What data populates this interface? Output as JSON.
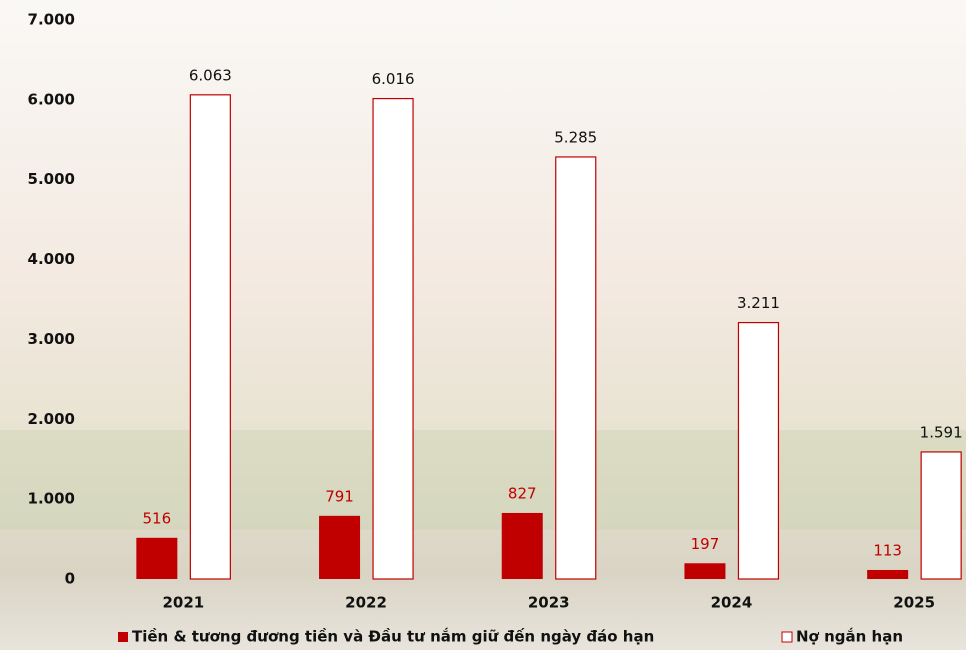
{
  "chart_data": {
    "type": "bar",
    "categories": [
      "2021",
      "2022",
      "2023",
      "2024",
      "2025"
    ],
    "series": [
      {
        "name": "Tiền & tương đương tiền và Đầu tư nắm giữ đến ngày đáo hạn",
        "color": "#c00000",
        "values": [
          516,
          791,
          827,
          197,
          113
        ]
      },
      {
        "name": "Nợ ngắn hạn",
        "color": "#ffffff",
        "values": [
          6063,
          6016,
          5285,
          3211,
          1591
        ],
        "value_labels": [
          "6.063",
          "6.016",
          "5.285",
          "3.211",
          "1.591"
        ]
      }
    ],
    "ylim": [
      0,
      7000
    ],
    "yticks": [
      {
        "value": 0,
        "label": "0"
      },
      {
        "value": 1000,
        "label": "1.000"
      },
      {
        "value": 2000,
        "label": "2.000"
      },
      {
        "value": 3000,
        "label": "3.000"
      },
      {
        "value": 4000,
        "label": "4.000"
      },
      {
        "value": 5000,
        "label": "5.000"
      },
      {
        "value": 6000,
        "label": "6.000"
      },
      {
        "value": 7000,
        "label": "7.000"
      }
    ],
    "grid": false,
    "legend": "bottom"
  }
}
